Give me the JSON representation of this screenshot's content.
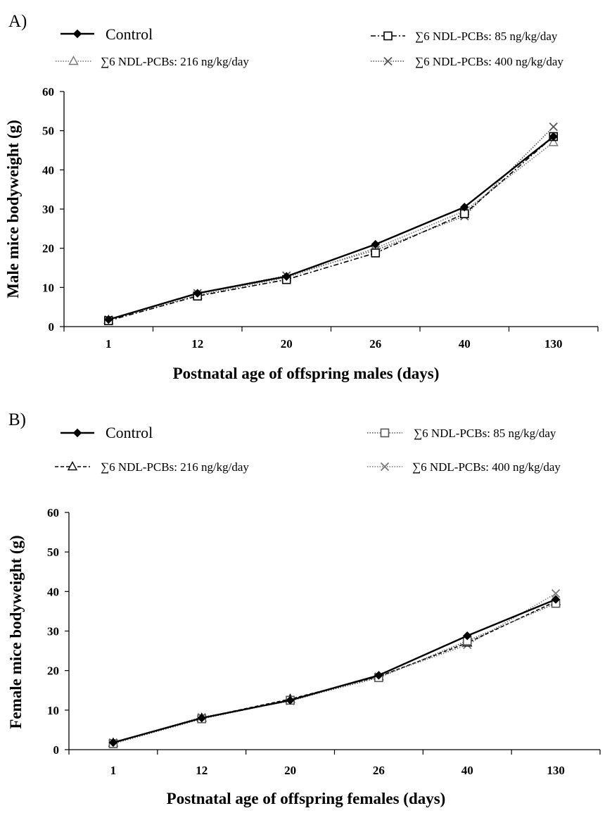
{
  "chart_data": [
    {
      "type": "line",
      "panel_label": "A)",
      "categories": [
        "1",
        "12",
        "20",
        "26",
        "40",
        "130"
      ],
      "xlabel": "Postnatal age of offspring males (days)",
      "ylabel": "Male mice bodyweight (g)",
      "ylim": [
        0,
        60
      ],
      "yticks": [
        "0",
        "10",
        "20",
        "30",
        "40",
        "50",
        "60"
      ],
      "grid": false,
      "legend_position": "top",
      "series": [
        {
          "name": "Control",
          "marker": "diamond",
          "line": "solid",
          "color": "#000000",
          "values": [
            1.8,
            8.5,
            12.8,
            21.0,
            30.5,
            48.5
          ]
        },
        {
          "name": "∑6 NDL-PCBs: 85 ng/kg/day",
          "marker": "square",
          "line": "dashdot",
          "color": "#000000",
          "values": [
            1.5,
            7.8,
            12.0,
            18.8,
            28.8,
            48.5
          ]
        },
        {
          "name": "∑6 NDL-PCBs: 216 ng/kg/day",
          "marker": "triangle",
          "line": "dotted",
          "color": "#777777",
          "values": [
            1.7,
            8.0,
            12.5,
            20.0,
            29.5,
            47.0
          ]
        },
        {
          "name": "∑6 NDL-PCBs: 400 ng/kg/day",
          "marker": "x",
          "line": "dotted",
          "color": "#555555",
          "values": [
            1.8,
            8.5,
            13.0,
            19.5,
            28.2,
            51.0
          ]
        }
      ]
    },
    {
      "type": "line",
      "panel_label": "B)",
      "categories": [
        "1",
        "12",
        "20",
        "26",
        "40",
        "130"
      ],
      "xlabel": "Postnatal age of offspring females (days)",
      "ylabel": "Female mice bodyweight (g)",
      "ylim": [
        0,
        60
      ],
      "yticks": [
        "0",
        "10",
        "20",
        "30",
        "40",
        "50",
        "60"
      ],
      "grid": false,
      "legend_position": "top",
      "series": [
        {
          "name": "Control",
          "marker": "diamond",
          "line": "solid",
          "color": "#000000",
          "values": [
            1.8,
            8.0,
            12.5,
            18.8,
            28.8,
            38.0
          ]
        },
        {
          "name": "∑6 NDL-PCBs: 85 ng/kg/day",
          "marker": "square",
          "line": "dotted",
          "color": "#555555",
          "values": [
            1.5,
            7.8,
            12.5,
            18.2,
            27.5,
            37.0
          ]
        },
        {
          "name": "∑6 NDL-PCBs: 216 ng/kg/day",
          "marker": "triangle",
          "line": "dashed",
          "color": "#000000",
          "values": [
            1.7,
            8.0,
            12.8,
            18.5,
            27.0,
            37.5
          ]
        },
        {
          "name": "∑6 NDL-PCBs: 400 ng/kg/day",
          "marker": "x",
          "line": "dotted",
          "color": "#777777",
          "values": [
            1.8,
            8.2,
            12.3,
            18.5,
            26.5,
            39.5
          ]
        }
      ]
    }
  ]
}
